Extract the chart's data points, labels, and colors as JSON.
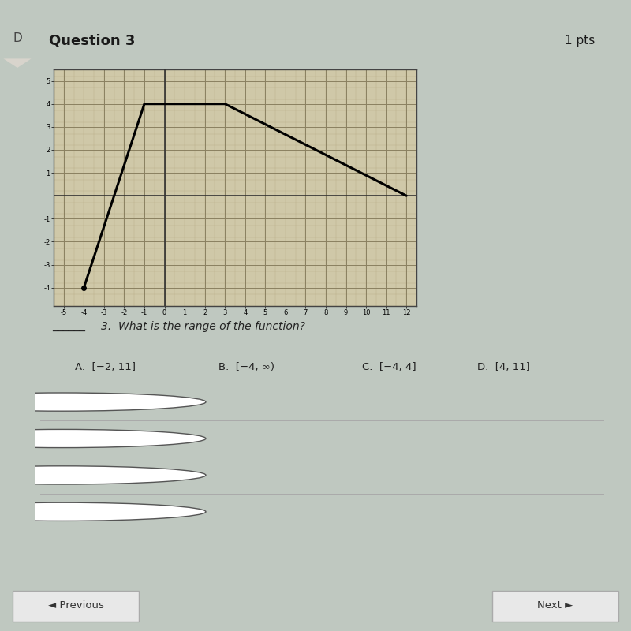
{
  "title": "Question 3",
  "title_pts": "1 pts",
  "graph": {
    "line_x": [
      -4,
      -1,
      3,
      12
    ],
    "line_y": [
      -4,
      4,
      4,
      0
    ],
    "xlim": [
      -5.5,
      12.5
    ],
    "ylim": [
      -4.8,
      5.5
    ],
    "xticks": [
      -5,
      -4,
      -3,
      -2,
      -1,
      0,
      1,
      2,
      3,
      4,
      5,
      6,
      7,
      8,
      9,
      10,
      11,
      12
    ],
    "yticks": [
      -4,
      -3,
      -2,
      -1,
      0,
      1,
      2,
      3,
      4,
      5
    ],
    "bg_color": "#cfc8a8",
    "grid_major_color": "#8a8060",
    "grid_minor_color": "#b8ad88",
    "line_color": "#000000",
    "line_width": 2.2
  },
  "question_text": "3.  What is the range of the function?",
  "choices": [
    "A.  [−2, 11]",
    "B.  [−4, ∞)",
    "C.  [−4, 4]",
    "D.  [4, 11]"
  ],
  "radio_labels": [
    "A",
    "B",
    "C",
    "D"
  ],
  "outer_bg": "#bfc8c0",
  "panel_bg": "#e0ddd8",
  "panel_border": "#999999",
  "header_bg": "#9aaa78",
  "header_text_color": "#1a1a1a",
  "pts_text_color": "#1a1a1a",
  "tab_bg": "#d8d4cc",
  "bottom_bg": "#bfc8c0",
  "btn_bg": "#e8e8e8",
  "btn_border": "#aaaaaa",
  "separator_color": "#aaaaaa",
  "radio_color": "#555555"
}
